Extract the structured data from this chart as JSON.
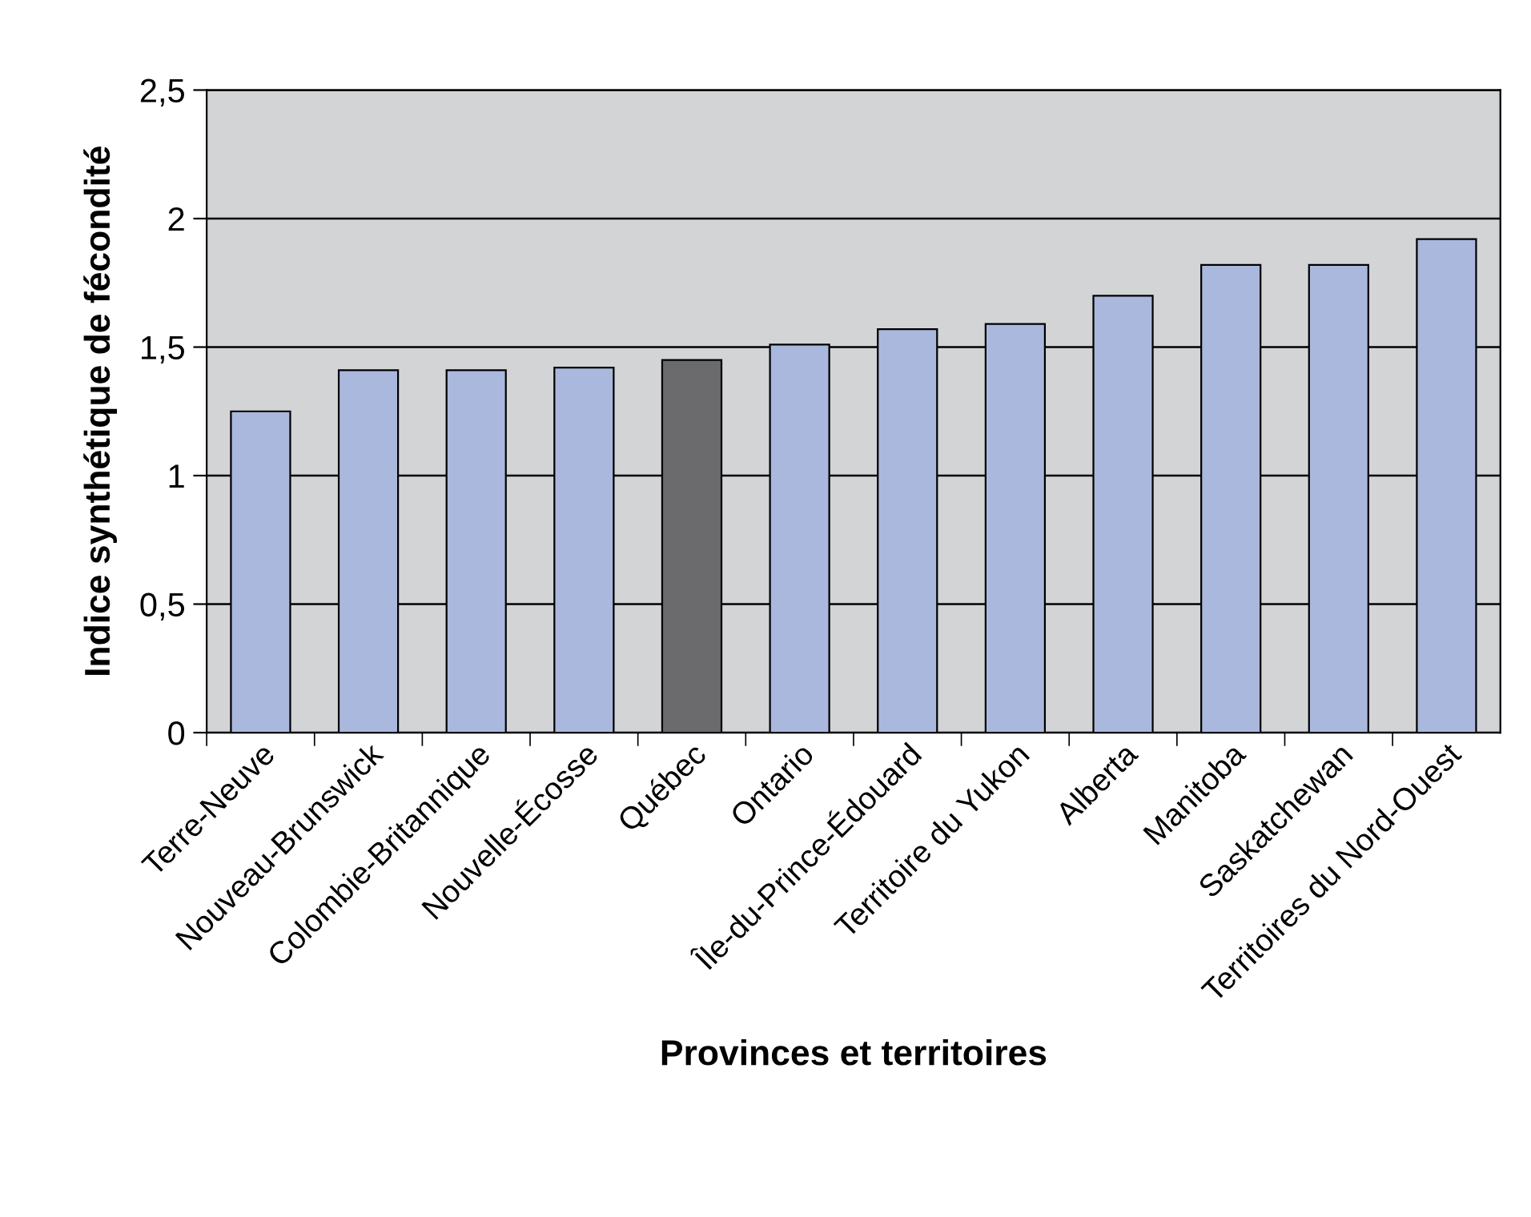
{
  "chart_data": {
    "type": "bar",
    "xlabel": "Provinces et territoires",
    "ylabel": "Indice synthétique de fécondité",
    "categories": [
      "Terre-Neuve",
      "Nouveau-Brunswick",
      "Colombie-Britannique",
      "Nouvelle-Écosse",
      "Québec",
      "Ontario",
      "Île-du-Prince-Édouard",
      "Territoire du Yukon",
      "Alberta",
      "Manitoba",
      "Saskatchewan",
      "Territoires du Nord-Ouest"
    ],
    "values": [
      1.25,
      1.41,
      1.41,
      1.42,
      1.45,
      1.51,
      1.57,
      1.59,
      1.7,
      1.82,
      1.82,
      1.92
    ],
    "colors": [
      "#aab8de",
      "#aab8de",
      "#aab8de",
      "#aab8de",
      "#6b6b6d",
      "#aab8de",
      "#aab8de",
      "#aab8de",
      "#aab8de",
      "#aab8de",
      "#aab8de",
      "#aab8de"
    ],
    "ylim": [
      0,
      2.5
    ],
    "yticks": [
      0,
      {
        "value": 0.5,
        "label": "0,5"
      },
      1,
      {
        "value": 1.5,
        "label": "1,5"
      },
      2,
      {
        "value": 2.5,
        "label": "2,5"
      }
    ],
    "grid": "y"
  }
}
